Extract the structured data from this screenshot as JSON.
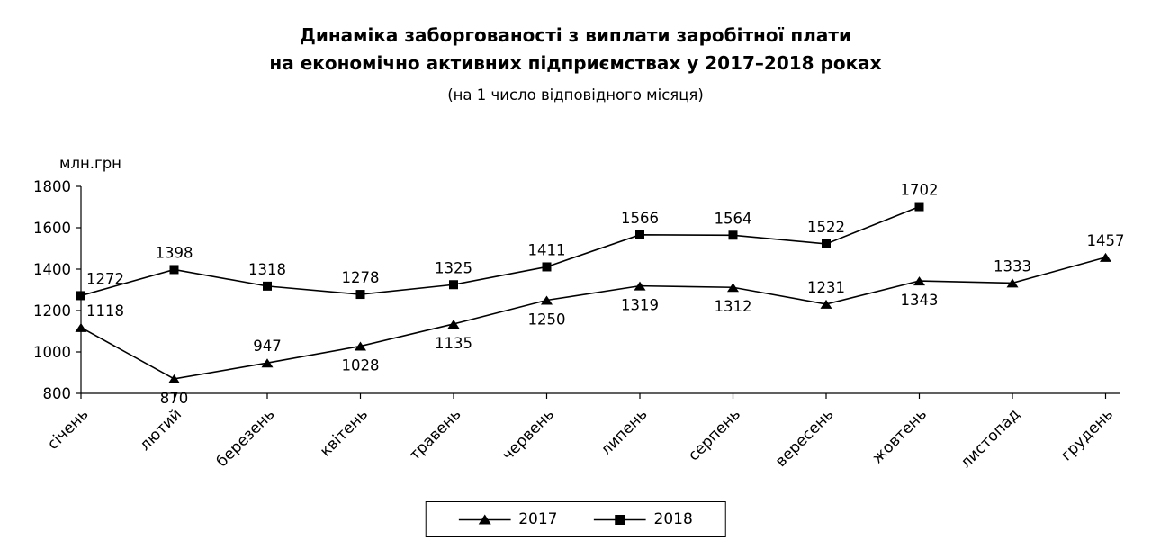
{
  "chart_data": {
    "type": "line",
    "title_line1": "Динаміка заборгованості з виплати заробітної плати",
    "title_line2": "на економічно активних підприємствах у 2017–2018 роках",
    "subtitle": "(на 1 число відповідного місяця)",
    "ylabel": "млн.грн",
    "ylim": [
      800,
      1800
    ],
    "yticks": [
      800,
      1000,
      1200,
      1400,
      1600,
      1800
    ],
    "grid": false,
    "legend_position": "bottom",
    "line_color": "#000000",
    "background_color": "#ffffff",
    "categories": [
      "січень",
      "лютий",
      "березень",
      "квітень",
      "травень",
      "червень",
      "липень",
      "серпень",
      "вересень",
      "жовтень",
      "листопад",
      "грудень"
    ],
    "series": [
      {
        "name": "2017",
        "marker": "triangle",
        "values": [
          1118,
          870,
          947,
          1028,
          1135,
          1250,
          1319,
          1312,
          1231,
          1343,
          1333,
          1457
        ],
        "label_side": [
          "above",
          "below",
          "above",
          "below",
          "below",
          "below",
          "below",
          "below",
          "above",
          "below",
          "above",
          "above"
        ]
      },
      {
        "name": "2018",
        "marker": "square",
        "values": [
          1272,
          1398,
          1318,
          1278,
          1325,
          1411,
          1566,
          1564,
          1522,
          1702
        ],
        "label_side": [
          "above",
          "above",
          "above",
          "above",
          "above",
          "above",
          "above",
          "above",
          "above",
          "above"
        ]
      }
    ],
    "legend": [
      "2017",
      "2018"
    ]
  }
}
